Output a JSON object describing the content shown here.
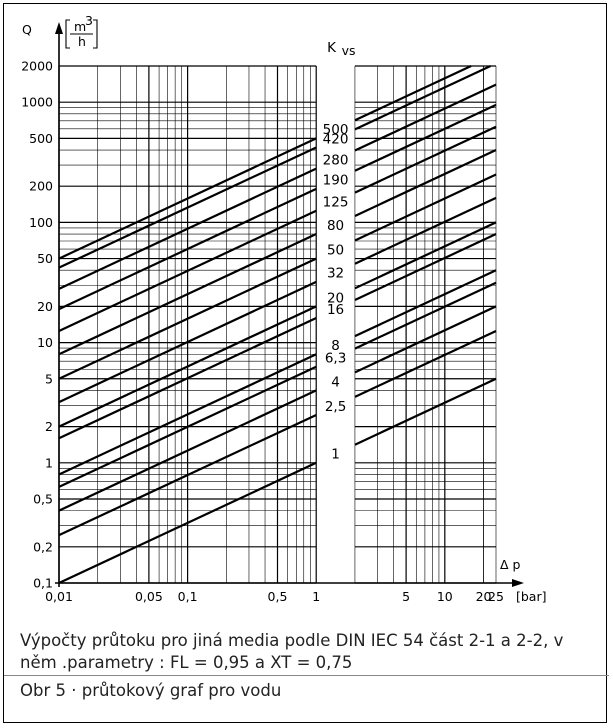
{
  "chart_data": {
    "type": "line",
    "title": "",
    "y_axis": {
      "symbol": "Q",
      "unit_num": "m",
      "unit_exp": "3",
      "unit_den": "h",
      "scale": "log",
      "range": [
        0.1,
        2000
      ],
      "ticks": [
        0.1,
        0.2,
        0.5,
        1,
        2,
        5,
        10,
        20,
        50,
        100,
        200,
        500,
        1000,
        2000
      ],
      "tick_labels": [
        "0,1",
        "0,2",
        "0,5",
        "1",
        "2",
        "5",
        "10",
        "20",
        "50",
        "100",
        "200",
        "500",
        "1000",
        "2000"
      ]
    },
    "x_axis": {
      "symbol": "Δ p",
      "unit": "[bar]",
      "scale": "log",
      "range": [
        0.01,
        25
      ],
      "ticks": [
        0.01,
        0.05,
        0.1,
        0.5,
        1,
        5,
        10,
        20,
        25
      ],
      "tick_labels": [
        "0,01",
        "0,05",
        "0,1",
        "0,5",
        "1",
        "5",
        "10",
        "20",
        "25"
      ]
    },
    "series_header": "K",
    "series_header_sub": "vs",
    "series_labels": [
      "500",
      "420",
      "280",
      "190",
      "125",
      "80",
      "50",
      "32",
      "20",
      "16",
      "8",
      "6,3",
      "4",
      "2,5",
      "1"
    ],
    "kvs_values": [
      500,
      420,
      280,
      190,
      125,
      80,
      50,
      32,
      20,
      16,
      8,
      6.3,
      4,
      2.5,
      1
    ],
    "relation": "Q = Kvs * sqrt(Δp)",
    "grid": true,
    "colors": {
      "line": "#000000",
      "grid": "#000000",
      "background": "#ffffff"
    }
  },
  "caption": {
    "line1": "Výpočty průtoku pro jiná media podle DIN IEC 54 část 2-1 a 2-2, v něm .parametry : FL = 0,95 a XT = 0,75",
    "line2": "Obr 5 · průtokový graf pro vodu"
  }
}
